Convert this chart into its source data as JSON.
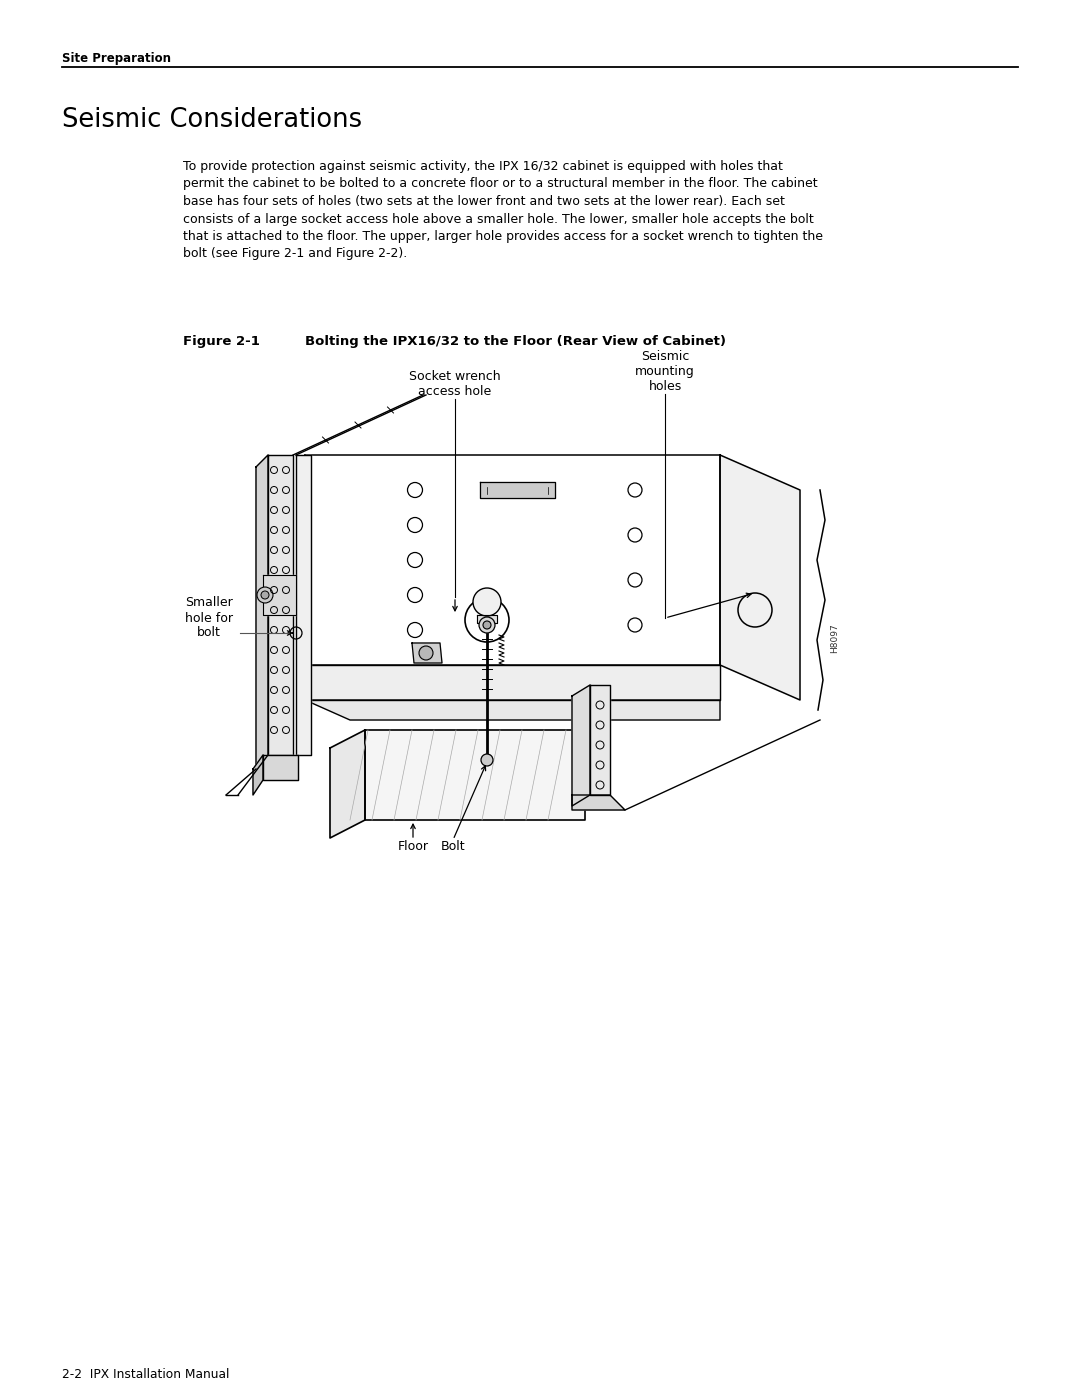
{
  "page_title": "Site Preparation",
  "section_title": "Seismic Considerations",
  "body_lines": [
    "To provide protection against seismic activity, the IPX 16/32 cabinet is equipped with holes that",
    "permit the cabinet to be bolted to a concrete floor or to a structural member in the floor. The cabinet",
    "base has four sets of holes (two sets at the lower front and two sets at the lower rear). Each set",
    "consists of a large socket access hole above a smaller hole. The lower, smaller hole accepts the bolt",
    "that is attached to the floor. The upper, larger hole provides access for a socket wrench to tighten the",
    "bolt (see Figure 2-1 and Figure 2-2)."
  ],
  "figure_label": "Figure 2-1",
  "figure_title": "Bolting the IPX16/32 to the Floor (Rear View of Cabinet)",
  "ann_socket": "Socket wrench\naccess hole",
  "ann_seismic": "Seismic\nmounting\nholes",
  "ann_smaller": "Smaller\nhole for\nbolt",
  "ann_floor": "Floor",
  "ann_bolt": "Bolt",
  "watermark": "H8097",
  "footer": "2-2  IPX Installation Manual",
  "bg_color": "#ffffff",
  "lc": "#000000",
  "tc": "#000000"
}
